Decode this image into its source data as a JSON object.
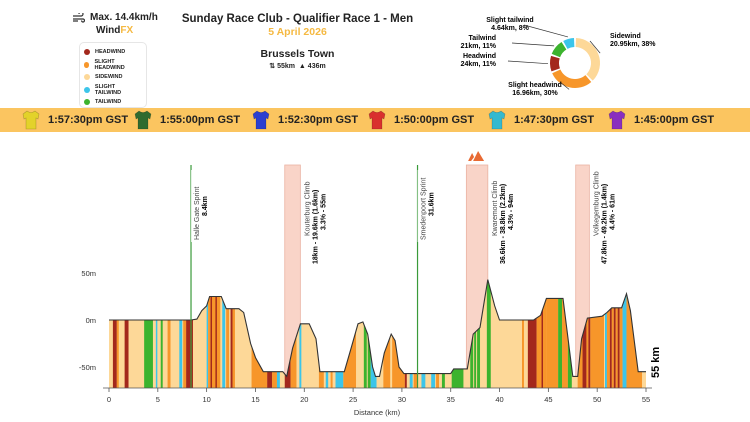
{
  "header": {
    "wind_max": "Max. 14.4km/h",
    "brand_main": "Wind",
    "brand_accent": "FX",
    "title": "Sunday Race Club - Qualifier Race 1 - Men",
    "date": "5 April 2026",
    "location": "Brussels Town",
    "distance": "55km",
    "elevation": "436m"
  },
  "colors": {
    "headwind": "#a3281c",
    "slight_headwind": "#f7962a",
    "sidewind": "#fdd898",
    "slight_tailwind": "#3cc5ea",
    "tailwind": "#3cb32e",
    "accent": "#f5b942",
    "bar": "#fbc560",
    "climb_band": "#f9d4c8"
  },
  "legend": [
    {
      "label": "HEADWIND",
      "key": "headwind"
    },
    {
      "label": "SLIGHT HEADWIND",
      "key": "slight_headwind"
    },
    {
      "label": "SIDEWIND",
      "key": "sidewind"
    },
    {
      "label": "SLIGHT TAILWIND",
      "key": "slight_tailwind"
    },
    {
      "label": "TAILWIND",
      "key": "tailwind"
    }
  ],
  "jerseys": [
    {
      "time": "1:57:30pm GST",
      "color": "#e3d22a"
    },
    {
      "time": "1:55:00pm GST",
      "color": "#2f6b2f"
    },
    {
      "time": "1:52:30pm GST",
      "color": "#2a3fd0"
    },
    {
      "time": "1:50:00pm GST",
      "color": "#d9302e"
    },
    {
      "time": "1:47:30pm GST",
      "color": "#35b9cf"
    },
    {
      "time": "1:45:00pm GST",
      "color": "#8a2fbf"
    }
  ],
  "chart_data": [
    {
      "type": "pie",
      "variant": "donut",
      "slices": [
        {
          "name": "Sidewind",
          "km": 20.95,
          "pct": 38,
          "key": "sidewind",
          "label1": "Sidewind",
          "label2": "20.95km, 38%"
        },
        {
          "name": "Slight headwind",
          "km": 16.96,
          "pct": 30,
          "key": "slight_headwind",
          "label1": "Slight headwind",
          "label2": "16.96km, 30%"
        },
        {
          "name": "Headwind",
          "km": 6.24,
          "pct": 11,
          "key": "headwind",
          "label1": "Headwind",
          "label2": "6.24km, 11%"
        },
        {
          "name": "Tailwind",
          "km": 6.21,
          "pct": 11,
          "key": "tailwind",
          "label1": "Tailwind",
          "label2": "6.21km, 11%"
        },
        {
          "name": "Slight tailwind",
          "km": 4.64,
          "pct": 8,
          "key": "slight_tailwind",
          "label1": "Slight tailwind",
          "label2": "4.64km, 8%"
        }
      ]
    },
    {
      "type": "area",
      "xlabel": "Distance (km)",
      "ylabel": "",
      "xlim": [
        0,
        55
      ],
      "ylim": [
        -72,
        100
      ],
      "xticks": [
        0,
        5,
        10,
        15,
        20,
        25,
        30,
        35,
        40,
        45,
        50,
        55
      ],
      "yticks": [
        {
          "v": 50,
          "label": "50m"
        },
        {
          "v": 0,
          "label": "0m"
        },
        {
          "v": -50,
          "label": "-50m"
        }
      ],
      "end_label": "55 km",
      "profile": [
        [
          0,
          0
        ],
        [
          8.4,
          0
        ],
        [
          9,
          1
        ],
        [
          9.5,
          10
        ],
        [
          10,
          15
        ],
        [
          10.3,
          25
        ],
        [
          11.5,
          25
        ],
        [
          12,
          12
        ],
        [
          13.3,
          12
        ],
        [
          13.8,
          8
        ],
        [
          14.5,
          -25
        ],
        [
          15,
          -40
        ],
        [
          15.8,
          -55
        ],
        [
          17.8,
          -55
        ],
        [
          18.2,
          -60
        ],
        [
          18.8,
          -30
        ],
        [
          19.6,
          -4
        ],
        [
          20.5,
          -4
        ],
        [
          21.2,
          -20
        ],
        [
          21.6,
          -55
        ],
        [
          24.1,
          -55
        ],
        [
          24.8,
          -30
        ],
        [
          25.5,
          -4
        ],
        [
          26,
          -2
        ],
        [
          26.5,
          -15
        ],
        [
          27,
          -50
        ],
        [
          27.3,
          -60
        ],
        [
          27.7,
          -60
        ],
        [
          28.2,
          -35
        ],
        [
          28.9,
          -15
        ],
        [
          29.3,
          -22
        ],
        [
          29.7,
          -50
        ],
        [
          30.2,
          -57
        ],
        [
          35,
          -57
        ],
        [
          35.3,
          -52
        ],
        [
          36.7,
          -52
        ],
        [
          37.3,
          -15
        ],
        [
          38,
          -8
        ],
        [
          38.8,
          43
        ],
        [
          39.5,
          15
        ],
        [
          40,
          0
        ],
        [
          43.5,
          0
        ],
        [
          44.2,
          5
        ],
        [
          44.8,
          23
        ],
        [
          46.5,
          23
        ],
        [
          47.5,
          -60
        ],
        [
          48,
          -60
        ],
        [
          48.4,
          -20
        ],
        [
          49,
          2
        ],
        [
          50.5,
          4
        ],
        [
          51,
          8
        ],
        [
          51.5,
          13
        ],
        [
          52.5,
          13
        ],
        [
          53,
          28
        ],
        [
          53.4,
          10
        ],
        [
          54.2,
          -55
        ],
        [
          55,
          -55
        ]
      ],
      "wind_segments": [
        [
          0.4,
          0.8,
          "headwind"
        ],
        [
          0.8,
          1.0,
          "slight_headwind"
        ],
        [
          1.6,
          2.0,
          "headwind"
        ],
        [
          3.6,
          4.5,
          "tailwind"
        ],
        [
          4.8,
          4.95,
          "slight_tailwind"
        ],
        [
          5.3,
          5.5,
          "tailwind"
        ],
        [
          6.0,
          6.3,
          "slight_headwind"
        ],
        [
          7.2,
          7.5,
          "slight_tailwind"
        ],
        [
          7.6,
          7.9,
          "slight_headwind"
        ],
        [
          7.9,
          8.6,
          "headwind"
        ],
        [
          10.0,
          10.15,
          "slight_tailwind"
        ],
        [
          10.15,
          11.4,
          "slight_headwind"
        ],
        [
          10.4,
          10.55,
          "headwind"
        ],
        [
          10.9,
          11.05,
          "headwind"
        ],
        [
          11.6,
          11.9,
          "slight_tailwind"
        ],
        [
          12.0,
          12.3,
          "slight_headwind"
        ],
        [
          12.45,
          12.65,
          "headwind"
        ],
        [
          12.65,
          12.9,
          "slight_headwind"
        ],
        [
          14.6,
          16.2,
          "slight_headwind"
        ],
        [
          16.2,
          16.7,
          "headwind"
        ],
        [
          16.7,
          17.2,
          "slight_headwind"
        ],
        [
          17.2,
          17.5,
          "slight_tailwind"
        ],
        [
          18.0,
          18.6,
          "headwind"
        ],
        [
          18.6,
          19.2,
          "slight_headwind"
        ],
        [
          19.5,
          19.7,
          "slight_tailwind"
        ],
        [
          21.5,
          22.0,
          "slight_headwind"
        ],
        [
          22.2,
          22.45,
          "slight_tailwind"
        ],
        [
          22.7,
          22.9,
          "slight_headwind"
        ],
        [
          23.2,
          24.0,
          "slight_tailwind"
        ],
        [
          24.0,
          25.3,
          "slight_headwind"
        ],
        [
          26.1,
          26.4,
          "tailwind"
        ],
        [
          26.5,
          26.8,
          "tailwind"
        ],
        [
          26.8,
          27.4,
          "slight_tailwind"
        ],
        [
          28.1,
          30.3,
          "slight_headwind"
        ],
        [
          28.8,
          29.0,
          "sidewind"
        ],
        [
          30.3,
          30.5,
          "headwind"
        ],
        [
          30.8,
          31.1,
          "slight_tailwind"
        ],
        [
          31.2,
          31.6,
          "slight_headwind"
        ],
        [
          32.0,
          32.4,
          "slight_tailwind"
        ],
        [
          33.0,
          33.4,
          "slight_tailwind"
        ],
        [
          33.5,
          33.8,
          "slight_headwind"
        ],
        [
          34.1,
          34.4,
          "tailwind"
        ],
        [
          35.1,
          36.3,
          "tailwind"
        ],
        [
          37.0,
          38.0,
          "tailwind"
        ],
        [
          37.3,
          37.4,
          "sidewind"
        ],
        [
          37.6,
          37.7,
          "sidewind"
        ],
        [
          38.7,
          39.1,
          "tailwind"
        ],
        [
          42.3,
          42.5,
          "slight_headwind"
        ],
        [
          42.9,
          43.8,
          "headwind"
        ],
        [
          43.8,
          44.8,
          "slight_headwind"
        ],
        [
          44.3,
          44.45,
          "headwind"
        ],
        [
          44.8,
          46.0,
          "slight_headwind"
        ],
        [
          46.0,
          46.4,
          "tailwind"
        ],
        [
          46.4,
          47.0,
          "slight_headwind"
        ],
        [
          47.0,
          47.4,
          "tailwind"
        ],
        [
          48.0,
          48.5,
          "slight_headwind"
        ],
        [
          48.5,
          48.9,
          "headwind"
        ],
        [
          48.9,
          49.1,
          "slight_headwind"
        ],
        [
          49.1,
          49.3,
          "headwind"
        ],
        [
          49.3,
          50.7,
          "slight_headwind"
        ],
        [
          50.8,
          51.0,
          "slight_tailwind"
        ],
        [
          51.0,
          51.3,
          "slight_headwind"
        ],
        [
          51.3,
          51.5,
          "headwind"
        ],
        [
          51.5,
          51.7,
          "slight_headwind"
        ],
        [
          51.7,
          51.9,
          "headwind"
        ],
        [
          51.9,
          52.1,
          "slight_headwind"
        ],
        [
          52.1,
          52.3,
          "headwind"
        ],
        [
          52.3,
          52.6,
          "slight_headwind"
        ],
        [
          52.6,
          53.0,
          "slight_tailwind"
        ],
        [
          53.0,
          54.6,
          "slight_headwind"
        ],
        [
          54.6,
          54.8,
          "sidewind"
        ]
      ],
      "sprints": [
        {
          "name": "Halle Gate Sprint",
          "detail": "8.4km",
          "km": 8.4
        },
        {
          "name": "Smedenpoort Sprint",
          "detail": "31.6km",
          "km": 31.6
        }
      ],
      "climbs": [
        {
          "name": "Kouterburg Climb",
          "detail": "18km - 19.6km (1.6km)",
          "stats": "3.3% - 55m",
          "start": 18,
          "end": 19.6
        },
        {
          "name": "Kwaremont Climb",
          "detail": "36.6km - 38.8km (2.2km)",
          "stats": "4.3% - 94m",
          "start": 36.6,
          "end": 38.8,
          "kom": true
        },
        {
          "name": "Volkegemburg Climb",
          "detail": "47.8km - 49.2km (1.4km)",
          "stats": "4.4% - 61m",
          "start": 47.8,
          "end": 49.2
        }
      ]
    }
  ]
}
